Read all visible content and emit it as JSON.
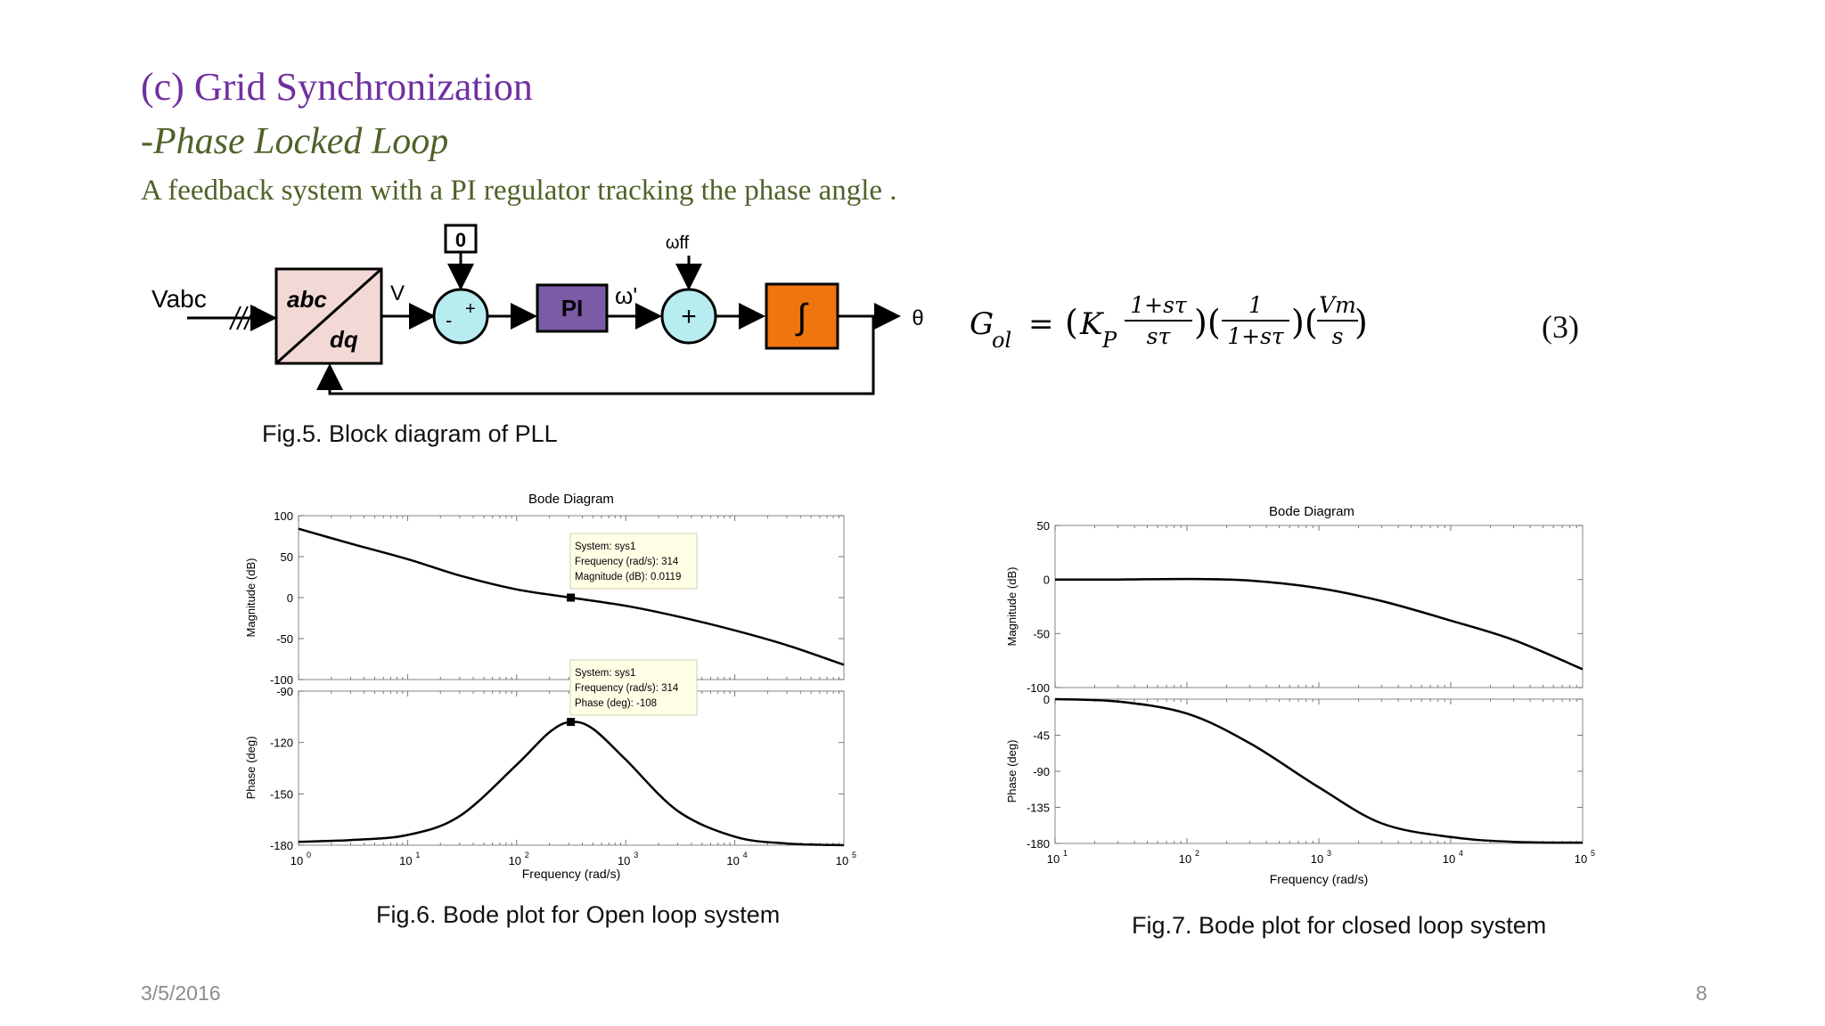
{
  "slide": {
    "title": "(c) Grid Synchronization",
    "subtitle": "-Phase Locked Loop",
    "description": "A feedback system with a PI regulator tracking the phase angle .",
    "date": "3/5/2016",
    "page_number": "8"
  },
  "block_diagram": {
    "input_label": "Vabc",
    "transform_top": "abc",
    "transform_bottom": "dq",
    "v_label": "V",
    "ref_label": "0",
    "sum1_plus": "+",
    "sum1_minus": "-",
    "pi_label": "PI",
    "omega_prime_label": "ω'",
    "omega_ff_label": "ωff",
    "sum2_plus": "+",
    "integrator_label": "∫",
    "output_label": "θ",
    "caption": "Fig.5. Block diagram of  PLL"
  },
  "equation": {
    "lhs": "G",
    "lhs_sub": "ol",
    "equals": "=",
    "kp": "K",
    "kp_sub": "P",
    "f1_num": "1+sτ",
    "f1_den": "sτ",
    "f2_num": "1",
    "f2_den": "1+sτ",
    "f3_num": "Vm",
    "f3_den": "s",
    "number": "(3)"
  },
  "open_loop_plot": {
    "title": "Bode Diagram",
    "mag_ylabel": "Magnitude (dB)",
    "phase_ylabel": "Phase (deg)",
    "xlabel": "Frequency  (rad/s)",
    "mag_ticks": [
      "100",
      "50",
      "0",
      "-50",
      "-100"
    ],
    "phase_ticks": [
      "-90",
      "-120",
      "-150",
      "-180"
    ],
    "x_tick_exponents": [
      "0",
      "1",
      "2",
      "3",
      "4",
      "5"
    ],
    "x_tick_base": "10",
    "datatip_mag": {
      "line1": "System: sys1",
      "line2": "Frequency (rad/s): 314",
      "line3": "Magnitude (dB): 0.0119"
    },
    "datatip_phase": {
      "line1": "System: sys1",
      "line2": "Frequency (rad/s): 314",
      "line3": "Phase (deg): -108"
    },
    "caption": "Fig.6. Bode plot for Open loop system"
  },
  "closed_loop_plot": {
    "title": "Bode Diagram",
    "mag_ylabel": "Magnitude (dB)",
    "phase_ylabel": "Phase (deg)",
    "xlabel": "Frequency  (rad/s)",
    "mag_ticks": [
      "50",
      "0",
      "-50",
      "-100"
    ],
    "phase_ticks": [
      "0",
      "-45",
      "-90",
      "-135",
      "-180"
    ],
    "x_tick_exponents": [
      "1",
      "2",
      "3",
      "4",
      "5"
    ],
    "x_tick_base": "10",
    "caption": "Fig.7. Bode plot for closed loop system"
  },
  "chart_data": [
    {
      "type": "line",
      "title": "Bode Diagram",
      "panel": "magnitude",
      "xlabel": "Frequency  (rad/s)",
      "ylabel": "Magnitude (dB)",
      "xscale": "log",
      "xlim": [
        1,
        100000
      ],
      "ylim": [
        -100,
        100
      ],
      "x": [
        1,
        3,
        10,
        30,
        100,
        314,
        1000,
        3000,
        10000,
        30000,
        100000
      ],
      "y": [
        84,
        66,
        47,
        27,
        10,
        0,
        -10,
        -23,
        -40,
        -58,
        -82
      ]
    },
    {
      "type": "line",
      "title": "",
      "panel": "phase",
      "xlabel": "Frequency  (rad/s)",
      "ylabel": "Phase (deg)",
      "xscale": "log",
      "xlim": [
        1,
        100000
      ],
      "ylim": [
        -180,
        -90
      ],
      "x": [
        1,
        3,
        10,
        30,
        100,
        200,
        314,
        500,
        1000,
        3000,
        10000,
        30000,
        100000
      ],
      "y": [
        -178,
        -177,
        -174,
        -163,
        -133,
        -114,
        -108,
        -112,
        -130,
        -160,
        -175,
        -179,
        -180
      ]
    },
    {
      "type": "line",
      "title": "Bode Diagram",
      "panel": "magnitude",
      "xlabel": "Frequency  (rad/s)",
      "ylabel": "Magnitude (dB)",
      "xscale": "log",
      "xlim": [
        10,
        100000
      ],
      "ylim": [
        -100,
        50
      ],
      "x": [
        10,
        30,
        100,
        300,
        1000,
        3000,
        10000,
        30000,
        100000
      ],
      "y": [
        0,
        0,
        0.5,
        -1,
        -8,
        -20,
        -38,
        -56,
        -83
      ]
    },
    {
      "type": "line",
      "title": "",
      "panel": "phase",
      "xlabel": "Frequency  (rad/s)",
      "ylabel": "Phase (deg)",
      "xscale": "log",
      "xlim": [
        10,
        100000
      ],
      "ylim": [
        -180,
        0
      ],
      "x": [
        10,
        30,
        100,
        300,
        1000,
        3000,
        10000,
        30000,
        100000
      ],
      "y": [
        0,
        -3,
        -18,
        -55,
        -110,
        -155,
        -172,
        -178,
        -179
      ]
    }
  ]
}
